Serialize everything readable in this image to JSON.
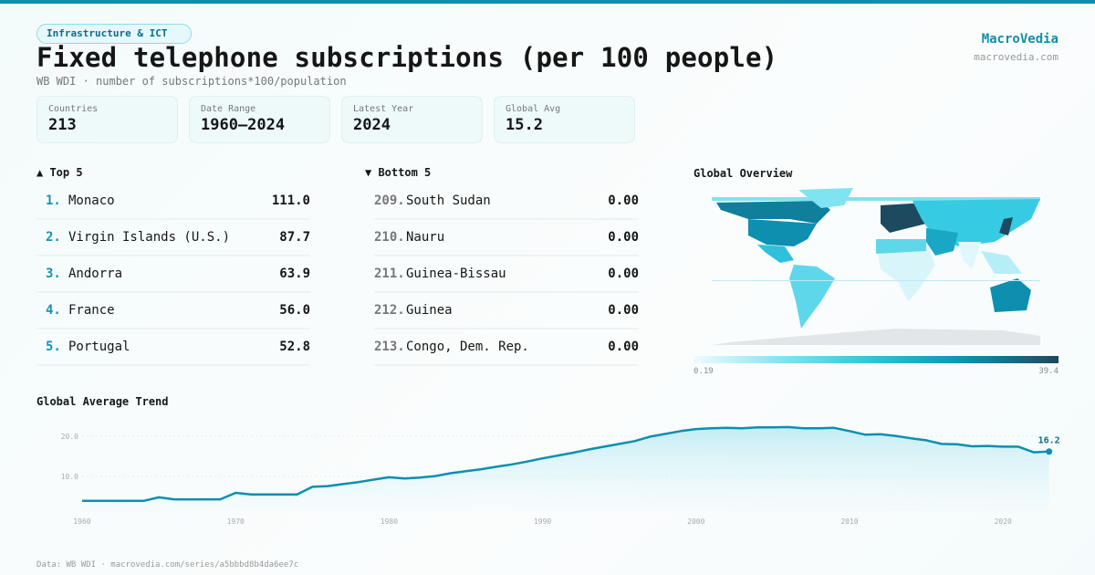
{
  "header": {
    "category": "Infrastructure & ICT",
    "title": "Fixed telephone subscriptions (per 100 people)",
    "subtitle": "WB WDI · number of subscriptions*100/population",
    "brand": "MacroVedia",
    "brand_url": "macrovedia.com"
  },
  "stats": [
    {
      "label": "Countries",
      "value": "213"
    },
    {
      "label": "Date Range",
      "value": "1960–2024"
    },
    {
      "label": "Latest Year",
      "value": "2024"
    },
    {
      "label": "Global Avg",
      "value": "15.2"
    }
  ],
  "top5": {
    "title": "▲ Top 5",
    "items": [
      {
        "rank": "1.",
        "name": "Monaco",
        "value": "111.0"
      },
      {
        "rank": "2.",
        "name": "Virgin Islands (U.S.)",
        "value": "87.7"
      },
      {
        "rank": "3.",
        "name": "Andorra",
        "value": "63.9"
      },
      {
        "rank": "4.",
        "name": "France",
        "value": "56.0"
      },
      {
        "rank": "5.",
        "name": "Portugal",
        "value": "52.8"
      }
    ]
  },
  "bottom5": {
    "title": "▼ Bottom 5",
    "items": [
      {
        "rank": "209.",
        "name": "South Sudan",
        "value": "0.00"
      },
      {
        "rank": "210.",
        "name": "Nauru",
        "value": "0.00"
      },
      {
        "rank": "211.",
        "name": "Guinea-Bissau",
        "value": "0.00"
      },
      {
        "rank": "212.",
        "name": "Guinea",
        "value": "0.00"
      },
      {
        "rank": "213.",
        "name": "Congo, Dem. Rep.",
        "value": "0.00"
      }
    ]
  },
  "map": {
    "title": "Global Overview",
    "scale_min": "0.19",
    "scale_max": "39.4",
    "colors": [
      "#effbfd",
      "#7fe3f2",
      "#2ec1db",
      "#0e8fb0",
      "#1d4a5e"
    ]
  },
  "chart_data": {
    "type": "area",
    "title": "Global Average Trend",
    "x": [
      1960,
      1961,
      1962,
      1963,
      1964,
      1965,
      1966,
      1967,
      1968,
      1969,
      1970,
      1971,
      1972,
      1973,
      1974,
      1975,
      1976,
      1977,
      1978,
      1979,
      1980,
      1981,
      1982,
      1983,
      1984,
      1985,
      1986,
      1987,
      1988,
      1989,
      1990,
      1991,
      1992,
      1993,
      1994,
      1995,
      1996,
      1997,
      1998,
      1999,
      2000,
      2001,
      2002,
      2003,
      2004,
      2005,
      2006,
      2007,
      2008,
      2009,
      2010,
      2011,
      2012,
      2013,
      2014,
      2015,
      2016,
      2017,
      2018,
      2019,
      2020,
      2021,
      2022,
      2023
    ],
    "values": [
      3.9,
      3.9,
      3.9,
      3.9,
      3.9,
      4.8,
      4.3,
      4.3,
      4.3,
      4.3,
      5.9,
      5.5,
      5.5,
      5.5,
      5.5,
      7.4,
      7.6,
      8.1,
      8.6,
      9.2,
      9.8,
      9.5,
      9.7,
      10.1,
      10.8,
      11.3,
      11.8,
      12.4,
      13.0,
      13.7,
      14.5,
      15.2,
      15.9,
      16.7,
      17.4,
      18.1,
      18.8,
      19.9,
      20.6,
      21.3,
      21.8,
      22.0,
      22.1,
      22.0,
      22.2,
      22.2,
      22.3,
      22.0,
      22.0,
      22.1,
      21.3,
      20.4,
      20.5,
      20.1,
      19.5,
      19.0,
      18.1,
      18.0,
      17.5,
      17.6,
      17.4,
      17.4,
      16.0,
      16.2
    ],
    "y_ticks": [
      "10.0",
      "20.0"
    ],
    "x_ticks": [
      "1960",
      "1970",
      "1980",
      "1990",
      "2000",
      "2010",
      "2020"
    ],
    "last_label": "16.2",
    "grid": true,
    "color": "#0e8fb0"
  },
  "footer": "Data: WB WDI · macrovedia.com/series/a5bbbd8b4da6ee7c"
}
